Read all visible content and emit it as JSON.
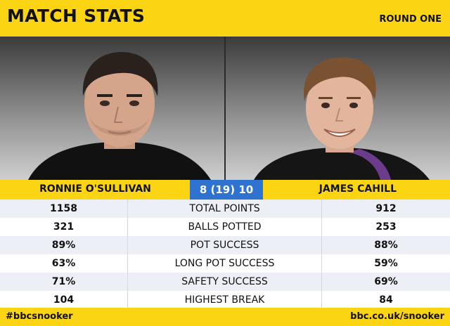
{
  "header": {
    "title": "MATCH STATS",
    "round": "ROUND ONE"
  },
  "players": {
    "left": {
      "name": "RONNIE O'SULLIVAN"
    },
    "right": {
      "name": "JAMES CAHILL"
    }
  },
  "score": {
    "left": "8",
    "frames": "(19)",
    "right": "10"
  },
  "stats": [
    {
      "label": "TOTAL POINTS",
      "left": "1158",
      "right": "912"
    },
    {
      "label": "BALLS POTTED",
      "left": "321",
      "right": "253"
    },
    {
      "label": "POT SUCCESS",
      "left": "89%",
      "right": "88%"
    },
    {
      "label": "LONG POT SUCCESS",
      "left": "63%",
      "right": "59%"
    },
    {
      "label": "SAFETY SUCCESS",
      "left": "71%",
      "right": "69%"
    },
    {
      "label": "HIGHEST BREAK",
      "left": "104",
      "right": "84"
    }
  ],
  "footer": {
    "hashtag": "#bbcsnooker",
    "url": "bbc.co.uk/snooker"
  },
  "colors": {
    "brand_yellow": "#fbd414",
    "score_blue": "#2f73d0",
    "row_stripe": "#eceff6"
  }
}
